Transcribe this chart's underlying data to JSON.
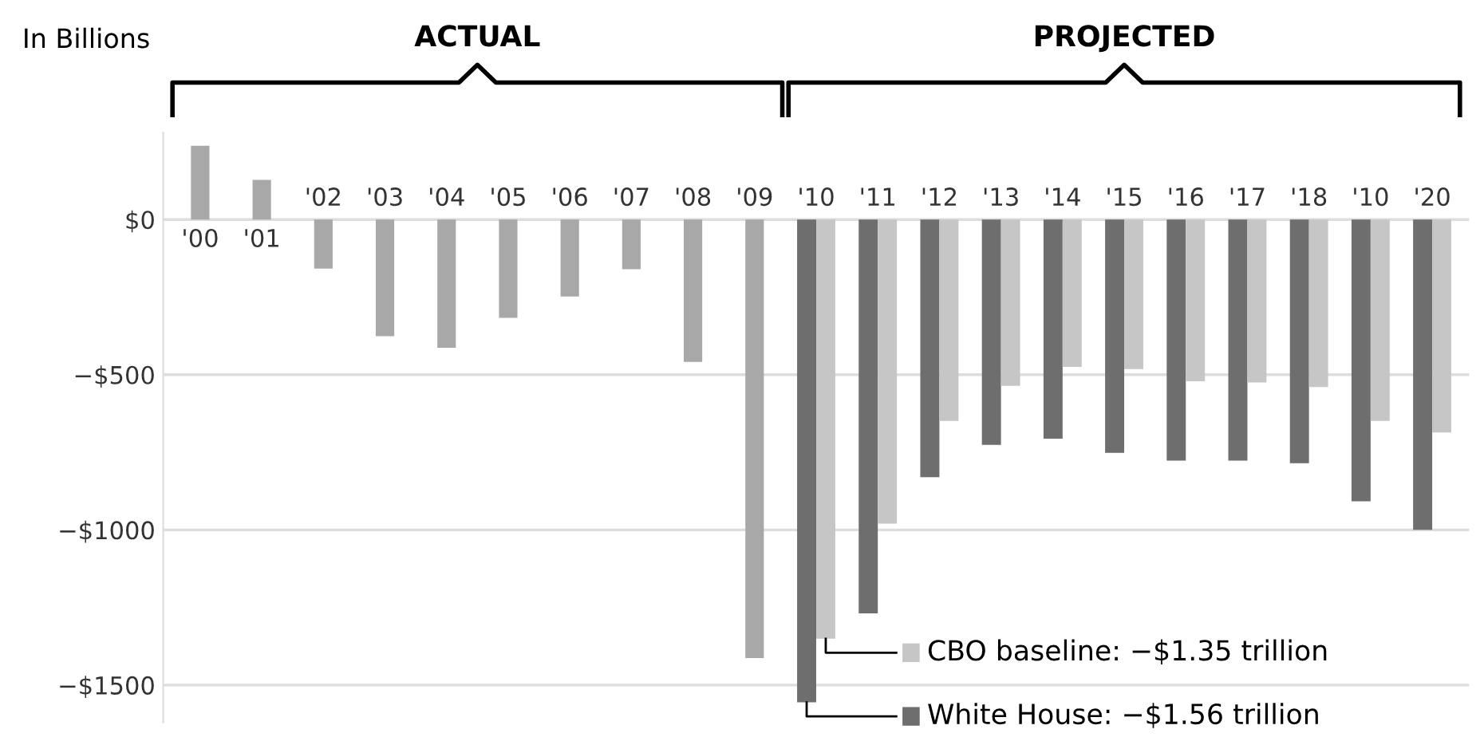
{
  "chart_data": {
    "type": "bar",
    "ylabel": "In Billions",
    "annotations": [
      "ACTUAL",
      "PROJECTED"
    ],
    "categories": [
      "'00",
      "'01",
      "'02",
      "'03",
      "'04",
      "'05",
      "'06",
      "'07",
      "'08",
      "'09",
      "'10",
      "'11",
      "'12",
      "'13",
      "'14",
      "'15",
      "'16",
      "'17",
      "'18",
      "'10",
      "'20"
    ],
    "series": [
      {
        "color": "#a8a8a8",
        "values": [
          238,
          128,
          -158,
          -376,
          -413,
          -317,
          -248,
          -160,
          -459,
          -1413,
          null,
          null,
          null,
          null,
          null,
          null,
          null,
          null,
          null,
          null,
          null
        ]
      },
      {
        "name": "White House: −$1.56 trillion",
        "color": "#6e6e6e",
        "values": [
          null,
          null,
          null,
          null,
          null,
          null,
          null,
          null,
          null,
          null,
          -1556,
          -1269,
          -830,
          -726,
          -706,
          -752,
          -777,
          -777,
          -785,
          -908,
          -1000
        ]
      },
      {
        "name": "CBO baseline: −$1.35 trillion",
        "color": "#c6c6c6",
        "values": [
          null,
          null,
          null,
          null,
          null,
          null,
          null,
          null,
          null,
          null,
          -1351,
          -980,
          -649,
          -536,
          -475,
          -482,
          -521,
          -525,
          -540,
          -649,
          -686
        ]
      }
    ],
    "ylim": [
      -1620,
      280
    ],
    "yticks": [
      {
        "value": 0,
        "label": "$0"
      },
      {
        "value": -500,
        "label": "−$500"
      },
      {
        "value": -1000,
        "label": "−$1000"
      },
      {
        "value": -1500,
        "label": "−$1500"
      }
    ],
    "grid": "y",
    "legend": "bottom right"
  }
}
